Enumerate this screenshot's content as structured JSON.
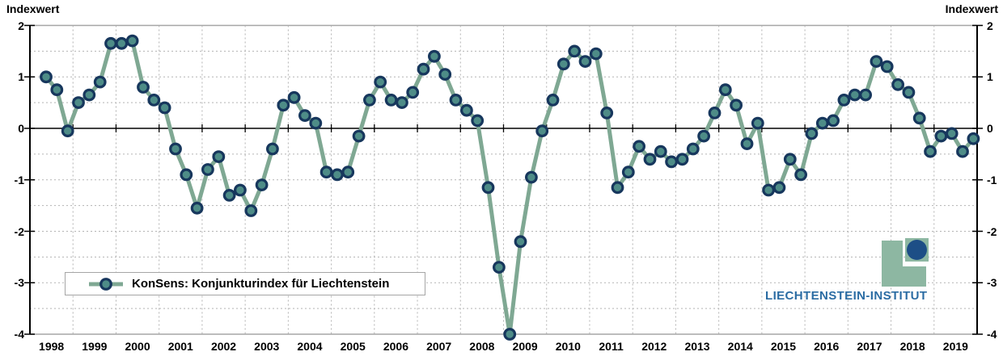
{
  "axis_left_title": "Indexwert",
  "axis_right_title": "Indexwert",
  "legend": {
    "label": "KonSens: Konjunkturindex für Liechtenstein"
  },
  "logo": {
    "text": "LIECHTENSTEIN-INSTITUT"
  },
  "chart_data": {
    "type": "line",
    "title": "",
    "ylabel_left": "Indexwert",
    "ylabel_right": "Indexwert",
    "ylim": [
      -4,
      2
    ],
    "y_ticks": [
      2,
      1,
      0,
      -1,
      -2,
      -3,
      -4
    ],
    "grid": "dashed gridlines every 0.5 units and every year",
    "legend_position": "bottom-left inside plot",
    "frequency": "quarterly",
    "start_period": "1998 Q1",
    "end_period": "2019 Q3",
    "year_labels": [
      "1998",
      "1999",
      "2000",
      "2001",
      "2002",
      "2003",
      "2004",
      "2005",
      "2006",
      "2007",
      "2008",
      "2009",
      "2010",
      "2011",
      "2012",
      "2013",
      "2014",
      "2015",
      "2016",
      "2017",
      "2018",
      "2019"
    ],
    "series": [
      {
        "name": "KonSens: Konjunkturindex für Liechtenstein",
        "values": [
          1.0,
          0.75,
          -0.05,
          0.5,
          0.65,
          0.9,
          1.65,
          1.65,
          1.7,
          0.8,
          0.55,
          0.4,
          -0.4,
          -0.9,
          -1.55,
          -0.8,
          -0.55,
          -1.3,
          -1.2,
          -1.6,
          -1.1,
          -0.4,
          0.45,
          0.6,
          0.25,
          0.1,
          -0.85,
          -0.9,
          -0.85,
          -0.15,
          0.55,
          0.9,
          0.55,
          0.5,
          0.7,
          1.15,
          1.4,
          1.05,
          0.55,
          0.35,
          0.15,
          -1.15,
          -2.7,
          -4.0,
          -2.2,
          -0.95,
          -0.05,
          0.55,
          1.25,
          1.5,
          1.3,
          1.45,
          0.3,
          -1.15,
          -0.85,
          -0.35,
          -0.6,
          -0.45,
          -0.65,
          -0.6,
          -0.4,
          -0.15,
          0.3,
          0.75,
          0.45,
          -0.3,
          0.1,
          -1.2,
          -1.15,
          -0.6,
          -0.9,
          -0.1,
          0.1,
          0.15,
          0.55,
          0.65,
          0.65,
          1.3,
          1.2,
          0.85,
          0.7,
          0.2,
          -0.45,
          -0.15,
          -0.1,
          -0.45,
          -0.2
        ]
      }
    ],
    "colors": {
      "line": "#7fa893",
      "marker_fill": "#4e8c87",
      "marker_stroke": "#17375d",
      "grid": "#b3b3b3",
      "frame_gray": "#a6a6a6",
      "axis_black": "#000000",
      "logo_green": "#8db7a2",
      "logo_circle_blue": "#1d4e86",
      "logo_text_blue": "#2b6ca3"
    }
  }
}
